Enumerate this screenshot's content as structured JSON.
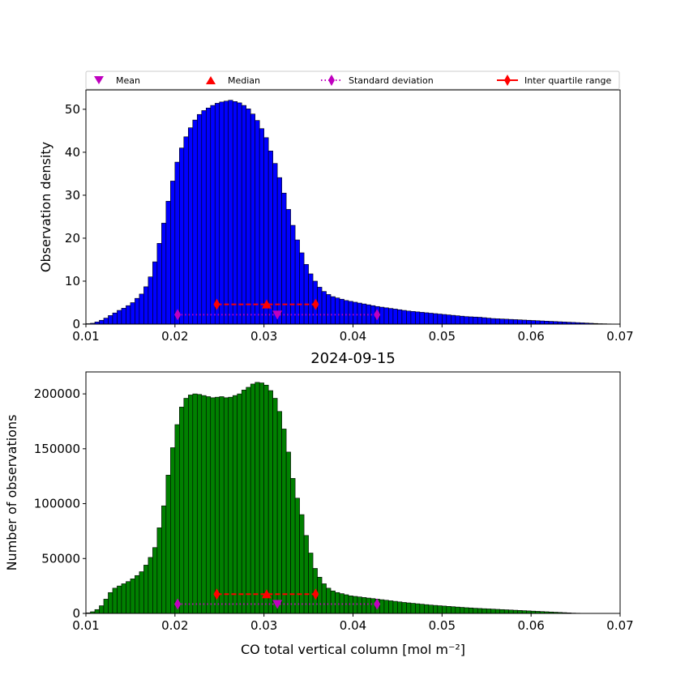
{
  "legend": {
    "mean_label": "Mean",
    "median_label": "Median",
    "std_label": "Standard deviation",
    "iqr_label": "Inter quartile range"
  },
  "colors": {
    "top_bars": "#0000ff",
    "bottom_bars": "#008000",
    "mean": "#bf00bf",
    "median": "#ff0000",
    "std": "#bf00bf",
    "iqr": "#ff0000"
  },
  "chart_data": [
    {
      "type": "bar",
      "title": "",
      "xlabel": "",
      "ylabel": "Observation density",
      "xlim": [
        0.01,
        0.07
      ],
      "ylim": [
        0,
        54.5
      ],
      "x_ticks": [
        0.01,
        0.02,
        0.03,
        0.04,
        0.05,
        0.06,
        0.07
      ],
      "x_tick_labels": [
        "0.01",
        "0.02",
        "0.03",
        "0.04",
        "0.05",
        "0.06",
        "0.07"
      ],
      "y_ticks": [
        0,
        10,
        20,
        30,
        40,
        50
      ],
      "y_tick_labels": [
        "0",
        "10",
        "20",
        "30",
        "40",
        "50"
      ],
      "bin_start": 0.01,
      "bin_width": 0.0005,
      "values": [
        0.1,
        0.2,
        0.5,
        0.9,
        1.4,
        2.0,
        2.6,
        3.2,
        3.7,
        4.3,
        5.0,
        6.0,
        7.0,
        8.7,
        11.0,
        14.5,
        18.8,
        23.5,
        28.6,
        33.3,
        37.7,
        41.0,
        43.6,
        45.7,
        47.5,
        48.8,
        49.7,
        50.3,
        50.9,
        51.4,
        51.7,
        51.9,
        52.1,
        51.8,
        51.5,
        50.9,
        50.1,
        48.9,
        47.4,
        45.5,
        43.4,
        40.3,
        37.4,
        34.1,
        30.5,
        26.7,
        23.0,
        19.6,
        16.6,
        13.9,
        11.7,
        10.0,
        8.6,
        7.6,
        6.9,
        6.4,
        6.1,
        5.8,
        5.5,
        5.3,
        5.1,
        4.9,
        4.7,
        4.5,
        4.3,
        4.1,
        3.95,
        3.8,
        3.65,
        3.5,
        3.35,
        3.2,
        3.05,
        2.95,
        2.85,
        2.75,
        2.65,
        2.55,
        2.45,
        2.35,
        2.25,
        2.15,
        2.05,
        1.95,
        1.85,
        1.75,
        1.7,
        1.65,
        1.6,
        1.5,
        1.4,
        1.3,
        1.25,
        1.2,
        1.15,
        1.1,
        1.05,
        1.0,
        0.95,
        0.9,
        0.85,
        0.8,
        0.75,
        0.7,
        0.65,
        0.6,
        0.55,
        0.5,
        0.45,
        0.4,
        0.35,
        0.3,
        0.25,
        0.2,
        0.15,
        0.1,
        0.08,
        0.05,
        0.03,
        0.02
      ],
      "stats": {
        "mean": {
          "x": 0.0315,
          "y": 2.2
        },
        "median": {
          "x": 0.0303,
          "y": 4.6
        },
        "std": {
          "x": [
            0.0203,
            0.0427
          ],
          "y": 2.2
        },
        "iqr": {
          "x": [
            0.0247,
            0.0358
          ],
          "y": 4.6
        }
      }
    },
    {
      "type": "bar",
      "title": "2024-09-15",
      "xlabel": "CO total vertical column [mol m⁻²]",
      "ylabel": "Number of observations",
      "xlim": [
        0.01,
        0.07
      ],
      "ylim": [
        0,
        220000
      ],
      "x_ticks": [
        0.01,
        0.02,
        0.03,
        0.04,
        0.05,
        0.06,
        0.07
      ],
      "x_tick_labels": [
        "0.01",
        "0.02",
        "0.03",
        "0.04",
        "0.05",
        "0.06",
        "0.07"
      ],
      "y_ticks": [
        0,
        50000,
        100000,
        150000,
        200000
      ],
      "y_tick_labels": [
        "0",
        "50000",
        "100000",
        "150000",
        "200000"
      ],
      "bin_start": 0.01,
      "bin_width": 0.0005,
      "values": [
        500,
        1500,
        3500,
        7000,
        13000,
        19000,
        23000,
        25000,
        27000,
        29000,
        31500,
        34500,
        38000,
        44000,
        51000,
        60000,
        78000,
        98000,
        126000,
        151000,
        172000,
        188000,
        196000,
        199000,
        200000,
        199500,
        198500,
        197500,
        196500,
        197000,
        197500,
        196500,
        197000,
        198500,
        200000,
        203500,
        206000,
        209000,
        210500,
        210000,
        208000,
        203000,
        196000,
        184000,
        168000,
        147000,
        123000,
        105000,
        90000,
        71000,
        55000,
        41000,
        33000,
        27000,
        23000,
        20500,
        19000,
        18000,
        17000,
        16000,
        15500,
        15000,
        14500,
        14000,
        13500,
        13000,
        12500,
        12000,
        11500,
        11000,
        10500,
        10000,
        9600,
        9200,
        8800,
        8400,
        8000,
        7600,
        7300,
        7000,
        6700,
        6400,
        6100,
        5800,
        5500,
        5200,
        5000,
        4700,
        4500,
        4300,
        4100,
        3900,
        3700,
        3500,
        3300,
        3100,
        2900,
        2700,
        2500,
        2300,
        2100,
        1900,
        1700,
        1500,
        1300,
        1100,
        900,
        700,
        500,
        300,
        200,
        100,
        80,
        60,
        40,
        20,
        10,
        5,
        3,
        1
      ],
      "stats": {
        "mean": {
          "x": 0.0315,
          "y": 8500
        },
        "median": {
          "x": 0.0303,
          "y": 17500
        },
        "std": {
          "x": [
            0.0203,
            0.0427
          ],
          "y": 8500
        },
        "iqr": {
          "x": [
            0.0247,
            0.0358
          ],
          "y": 17500
        }
      }
    }
  ]
}
